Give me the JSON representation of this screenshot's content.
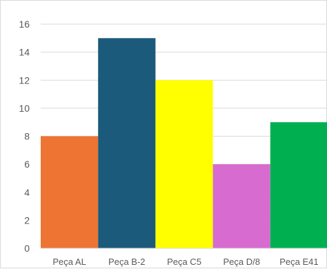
{
  "chart_data": {
    "type": "bar",
    "title": "",
    "xlabel": "",
    "ylabel": "",
    "categories": [
      "Peça AL",
      "Peça B-2",
      "Peça C5",
      "Peça D/8",
      "Peça E41"
    ],
    "values": [
      8,
      15,
      12,
      6,
      9
    ],
    "colors": [
      "#ED7433",
      "#1B5A7B",
      "#FFFF00",
      "#D76BCF",
      "#00B050"
    ],
    "ylim": [
      0,
      16
    ],
    "yticks": [
      0,
      2,
      4,
      6,
      8,
      10,
      12,
      14,
      16
    ],
    "ytick_labels": [
      "0",
      "2",
      "4",
      "6",
      "8",
      "10",
      "12",
      "14",
      "16"
    ],
    "grid": true,
    "legend": "none",
    "gridline_color": "#d9d9d9",
    "axis_color": "#d9d9d9",
    "text_color": "#595959"
  }
}
